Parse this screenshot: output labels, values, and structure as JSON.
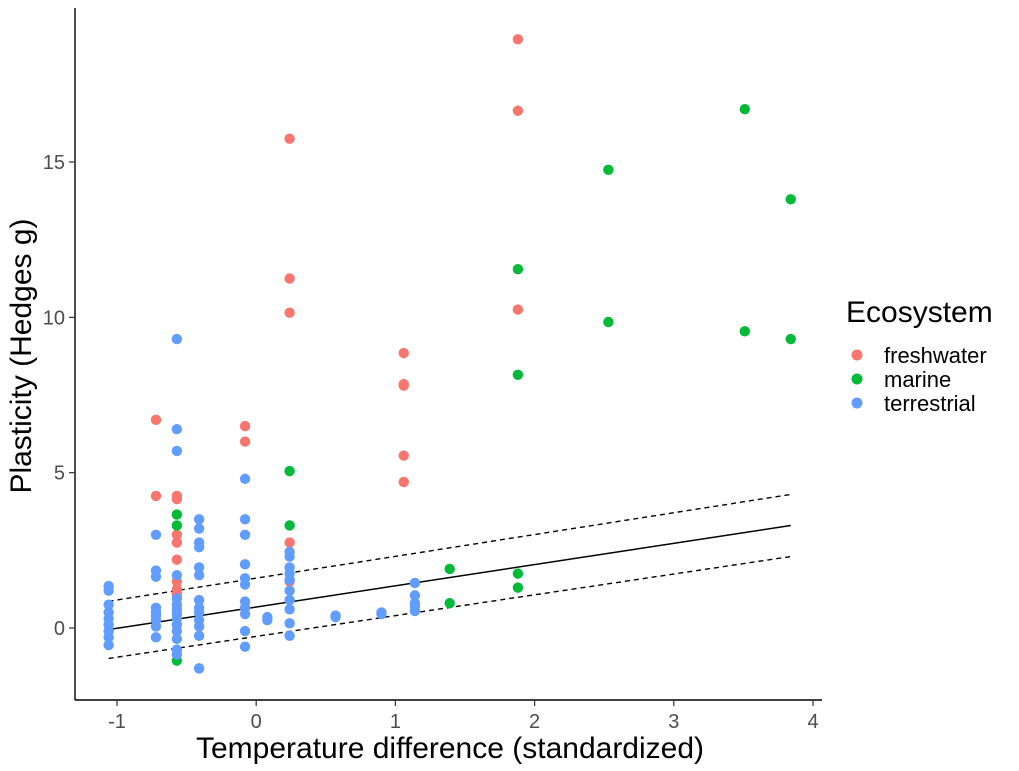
{
  "chart_data": {
    "type": "scatter",
    "title": "",
    "xlabel": "Temperature difference (standardized)",
    "ylabel": "Plasticity (Hedges g)",
    "xlim": [
      -1.3,
      4.1
    ],
    "ylim": [
      -2.3,
      20.0
    ],
    "xticks": [
      -1,
      0,
      1,
      2,
      3,
      4
    ],
    "yticks": [
      0,
      5,
      10,
      15
    ],
    "xtick_labels": [
      "-1",
      "0",
      "1",
      "2",
      "3",
      "4"
    ],
    "ytick_labels": [
      "0",
      "5",
      "10",
      "15"
    ],
    "grid": false,
    "legend": {
      "title": "Ecosystem",
      "position": "right",
      "entries": [
        "freshwater",
        "marine",
        "terrestrial"
      ]
    },
    "series": [
      {
        "name": "freshwater",
        "color": "#F8766D",
        "points": [
          [
            -0.72,
            6.7
          ],
          [
            -0.72,
            4.25
          ],
          [
            -0.57,
            4.25
          ],
          [
            -0.57,
            4.15
          ],
          [
            -0.57,
            3.0
          ],
          [
            -0.57,
            2.75
          ],
          [
            -0.57,
            2.2
          ],
          [
            -0.57,
            1.5
          ],
          [
            -0.57,
            1.25
          ],
          [
            -0.57,
            1.1
          ],
          [
            -0.08,
            6.5
          ],
          [
            -0.08,
            6.0
          ],
          [
            0.24,
            15.75
          ],
          [
            0.24,
            11.25
          ],
          [
            0.24,
            10.15
          ],
          [
            0.24,
            2.75
          ],
          [
            0.24,
            1.5
          ],
          [
            1.06,
            8.85
          ],
          [
            1.06,
            7.85
          ],
          [
            1.06,
            7.8
          ],
          [
            1.06,
            5.55
          ],
          [
            1.06,
            4.7
          ],
          [
            1.88,
            18.95
          ],
          [
            1.88,
            16.65
          ],
          [
            1.88,
            10.25
          ]
        ]
      },
      {
        "name": "marine",
        "color": "#00BA38",
        "points": [
          [
            -0.57,
            3.65
          ],
          [
            -0.57,
            3.3
          ],
          [
            -0.57,
            -1.05
          ],
          [
            0.24,
            5.05
          ],
          [
            0.24,
            3.3
          ],
          [
            1.39,
            1.9
          ],
          [
            1.39,
            0.8
          ],
          [
            1.88,
            11.55
          ],
          [
            1.88,
            8.15
          ],
          [
            1.88,
            1.75
          ],
          [
            1.88,
            1.3
          ],
          [
            2.53,
            14.75
          ],
          [
            2.53,
            9.85
          ],
          [
            3.51,
            16.7
          ],
          [
            3.51,
            9.55
          ],
          [
            3.84,
            13.8
          ],
          [
            3.84,
            9.3
          ]
        ]
      },
      {
        "name": "terrestrial",
        "color": "#619CFF",
        "points": [
          [
            -1.06,
            1.35
          ],
          [
            -1.06,
            1.2
          ],
          [
            -1.06,
            0.75
          ],
          [
            -1.06,
            0.5
          ],
          [
            -1.06,
            0.3
          ],
          [
            -1.06,
            0.1
          ],
          [
            -1.06,
            -0.1
          ],
          [
            -1.06,
            -0.3
          ],
          [
            -1.06,
            -0.55
          ],
          [
            -0.72,
            3.0
          ],
          [
            -0.72,
            1.85
          ],
          [
            -0.72,
            1.65
          ],
          [
            -0.72,
            0.65
          ],
          [
            -0.72,
            0.5
          ],
          [
            -0.72,
            0.4
          ],
          [
            -0.72,
            0.25
          ],
          [
            -0.72,
            0.05
          ],
          [
            -0.72,
            -0.3
          ],
          [
            -0.57,
            9.3
          ],
          [
            -0.57,
            6.4
          ],
          [
            -0.57,
            5.7
          ],
          [
            -0.57,
            1.7
          ],
          [
            -0.57,
            0.95
          ],
          [
            -0.57,
            0.75
          ],
          [
            -0.57,
            0.6
          ],
          [
            -0.57,
            0.45
          ],
          [
            -0.57,
            0.3
          ],
          [
            -0.57,
            0.1
          ],
          [
            -0.57,
            -0.1
          ],
          [
            -0.57,
            -0.35
          ],
          [
            -0.57,
            -0.7
          ],
          [
            -0.57,
            -0.85
          ],
          [
            -0.41,
            3.5
          ],
          [
            -0.41,
            3.2
          ],
          [
            -0.41,
            2.75
          ],
          [
            -0.41,
            2.6
          ],
          [
            -0.41,
            1.95
          ],
          [
            -0.41,
            1.7
          ],
          [
            -0.41,
            0.9
          ],
          [
            -0.41,
            0.65
          ],
          [
            -0.41,
            0.5
          ],
          [
            -0.41,
            0.25
          ],
          [
            -0.41,
            0.05
          ],
          [
            -0.41,
            -0.25
          ],
          [
            -0.41,
            -1.3
          ],
          [
            -0.08,
            4.8
          ],
          [
            -0.08,
            3.5
          ],
          [
            -0.08,
            3.0
          ],
          [
            -0.08,
            2.05
          ],
          [
            -0.08,
            1.6
          ],
          [
            -0.08,
            1.4
          ],
          [
            -0.08,
            0.85
          ],
          [
            -0.08,
            0.65
          ],
          [
            -0.08,
            0.45
          ],
          [
            -0.08,
            -0.1
          ],
          [
            -0.08,
            -0.6
          ],
          [
            0.08,
            0.35
          ],
          [
            0.08,
            0.25
          ],
          [
            0.24,
            2.45
          ],
          [
            0.24,
            2.3
          ],
          [
            0.24,
            1.95
          ],
          [
            0.24,
            1.75
          ],
          [
            0.24,
            1.55
          ],
          [
            0.24,
            1.2
          ],
          [
            0.24,
            0.9
          ],
          [
            0.24,
            0.6
          ],
          [
            0.24,
            0.15
          ],
          [
            0.24,
            -0.25
          ],
          [
            0.57,
            0.4
          ],
          [
            0.57,
            0.35
          ],
          [
            0.9,
            0.5
          ],
          [
            0.9,
            0.45
          ],
          [
            1.14,
            1.45
          ],
          [
            1.14,
            1.05
          ],
          [
            1.14,
            0.8
          ],
          [
            1.14,
            0.7
          ],
          [
            1.14,
            0.55
          ]
        ]
      }
    ],
    "fit_line": {
      "color": "#000000",
      "x": [
        -1.06,
        3.84
      ],
      "y": [
        -0.05,
        3.3
      ],
      "lower": [
        -0.98,
        2.3
      ],
      "upper": [
        0.86,
        4.3
      ]
    }
  }
}
